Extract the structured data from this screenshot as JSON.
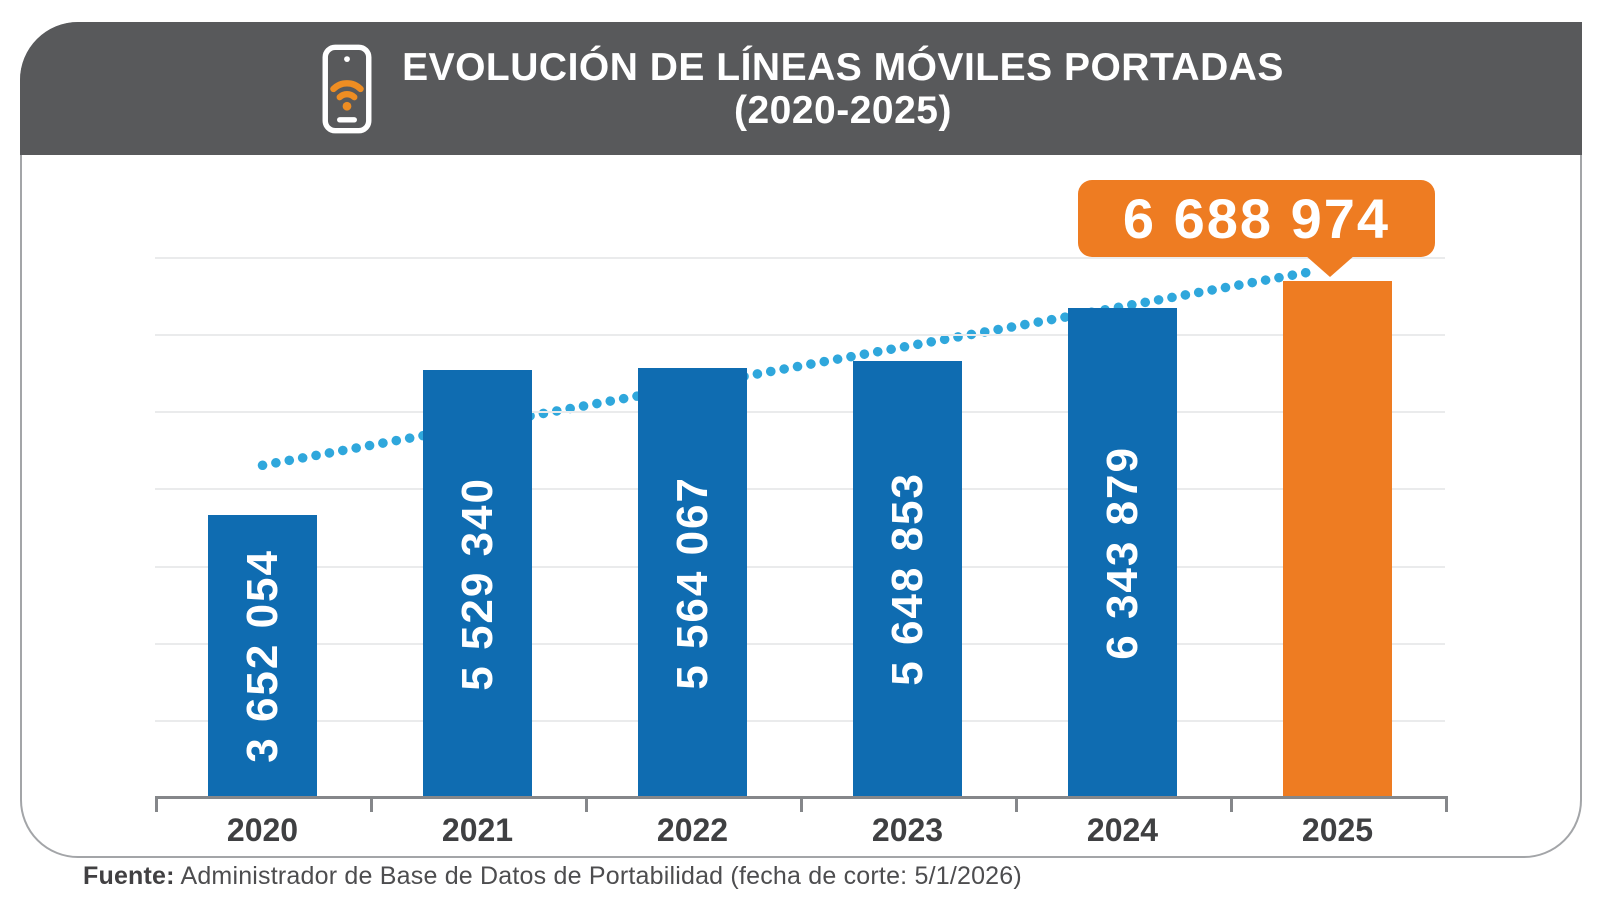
{
  "header": {
    "title_line1": "EVOLUCIÓN DE LÍNEAS MÓVILES PORTADAS",
    "title_line2": "(2020-2025)",
    "icon": "phone-wifi-icon"
  },
  "chart_data": {
    "type": "bar",
    "title": "EVOLUCIÓN DE LÍNEAS MÓVILES PORTADAS (2020-2025)",
    "categories": [
      "2020",
      "2021",
      "2022",
      "2023",
      "2024",
      "2025"
    ],
    "values": [
      3652054,
      5529340,
      5564067,
      5648853,
      6343879,
      6688974
    ],
    "value_labels": [
      "3 652 054",
      "5 529 340",
      "5 564 067",
      "5 648 853",
      "6 343 879",
      "6 688 974"
    ],
    "highlight_index": 5,
    "callout": {
      "text": "6 688 974",
      "for_category": "2025"
    },
    "trendline": {
      "shown": true,
      "style": "dotted",
      "start_value": 4300000,
      "end_value": 6820000
    },
    "ylim": [
      0,
      7500000
    ],
    "gridline_interval": 1000000,
    "legend": "none",
    "colors": {
      "bar": "#0F6CB1",
      "bar_highlight": "#EE7C22",
      "trend": "#2FA7DC",
      "header_band": "#58595B",
      "gridline": "#EAEBEC",
      "axis": "#85878A",
      "year_label": "#3F4042"
    }
  },
  "source": {
    "prefix": "Fuente:",
    "text": " Administrador de Base de Datos de Portabilidad (fecha de corte: 5/1/2026)"
  }
}
